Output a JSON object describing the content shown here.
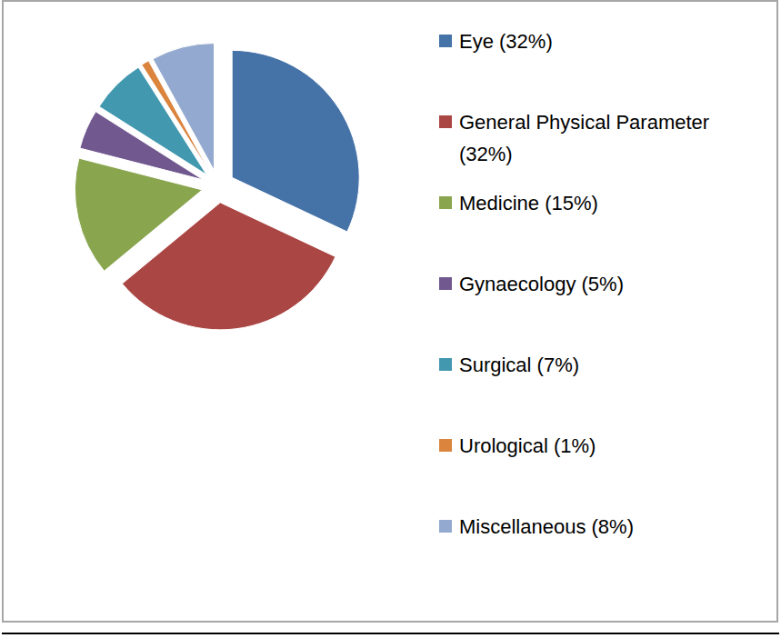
{
  "chart_data": {
    "type": "pie",
    "categories": [
      "Eye (32%)",
      "General Physical Parameter (32%)",
      "Medicine (15%)",
      "Gynaecology (5%)",
      "Surgical (7%)",
      "Urological (1%)",
      "Miscellaneous (8%)"
    ],
    "values": [
      32,
      32,
      15,
      5,
      7,
      1,
      8
    ],
    "colors": [
      "#4572a7",
      "#aa4643",
      "#89a54e",
      "#71588f",
      "#4198af",
      "#db843d",
      "#93a9cf"
    ],
    "legend": "right"
  }
}
